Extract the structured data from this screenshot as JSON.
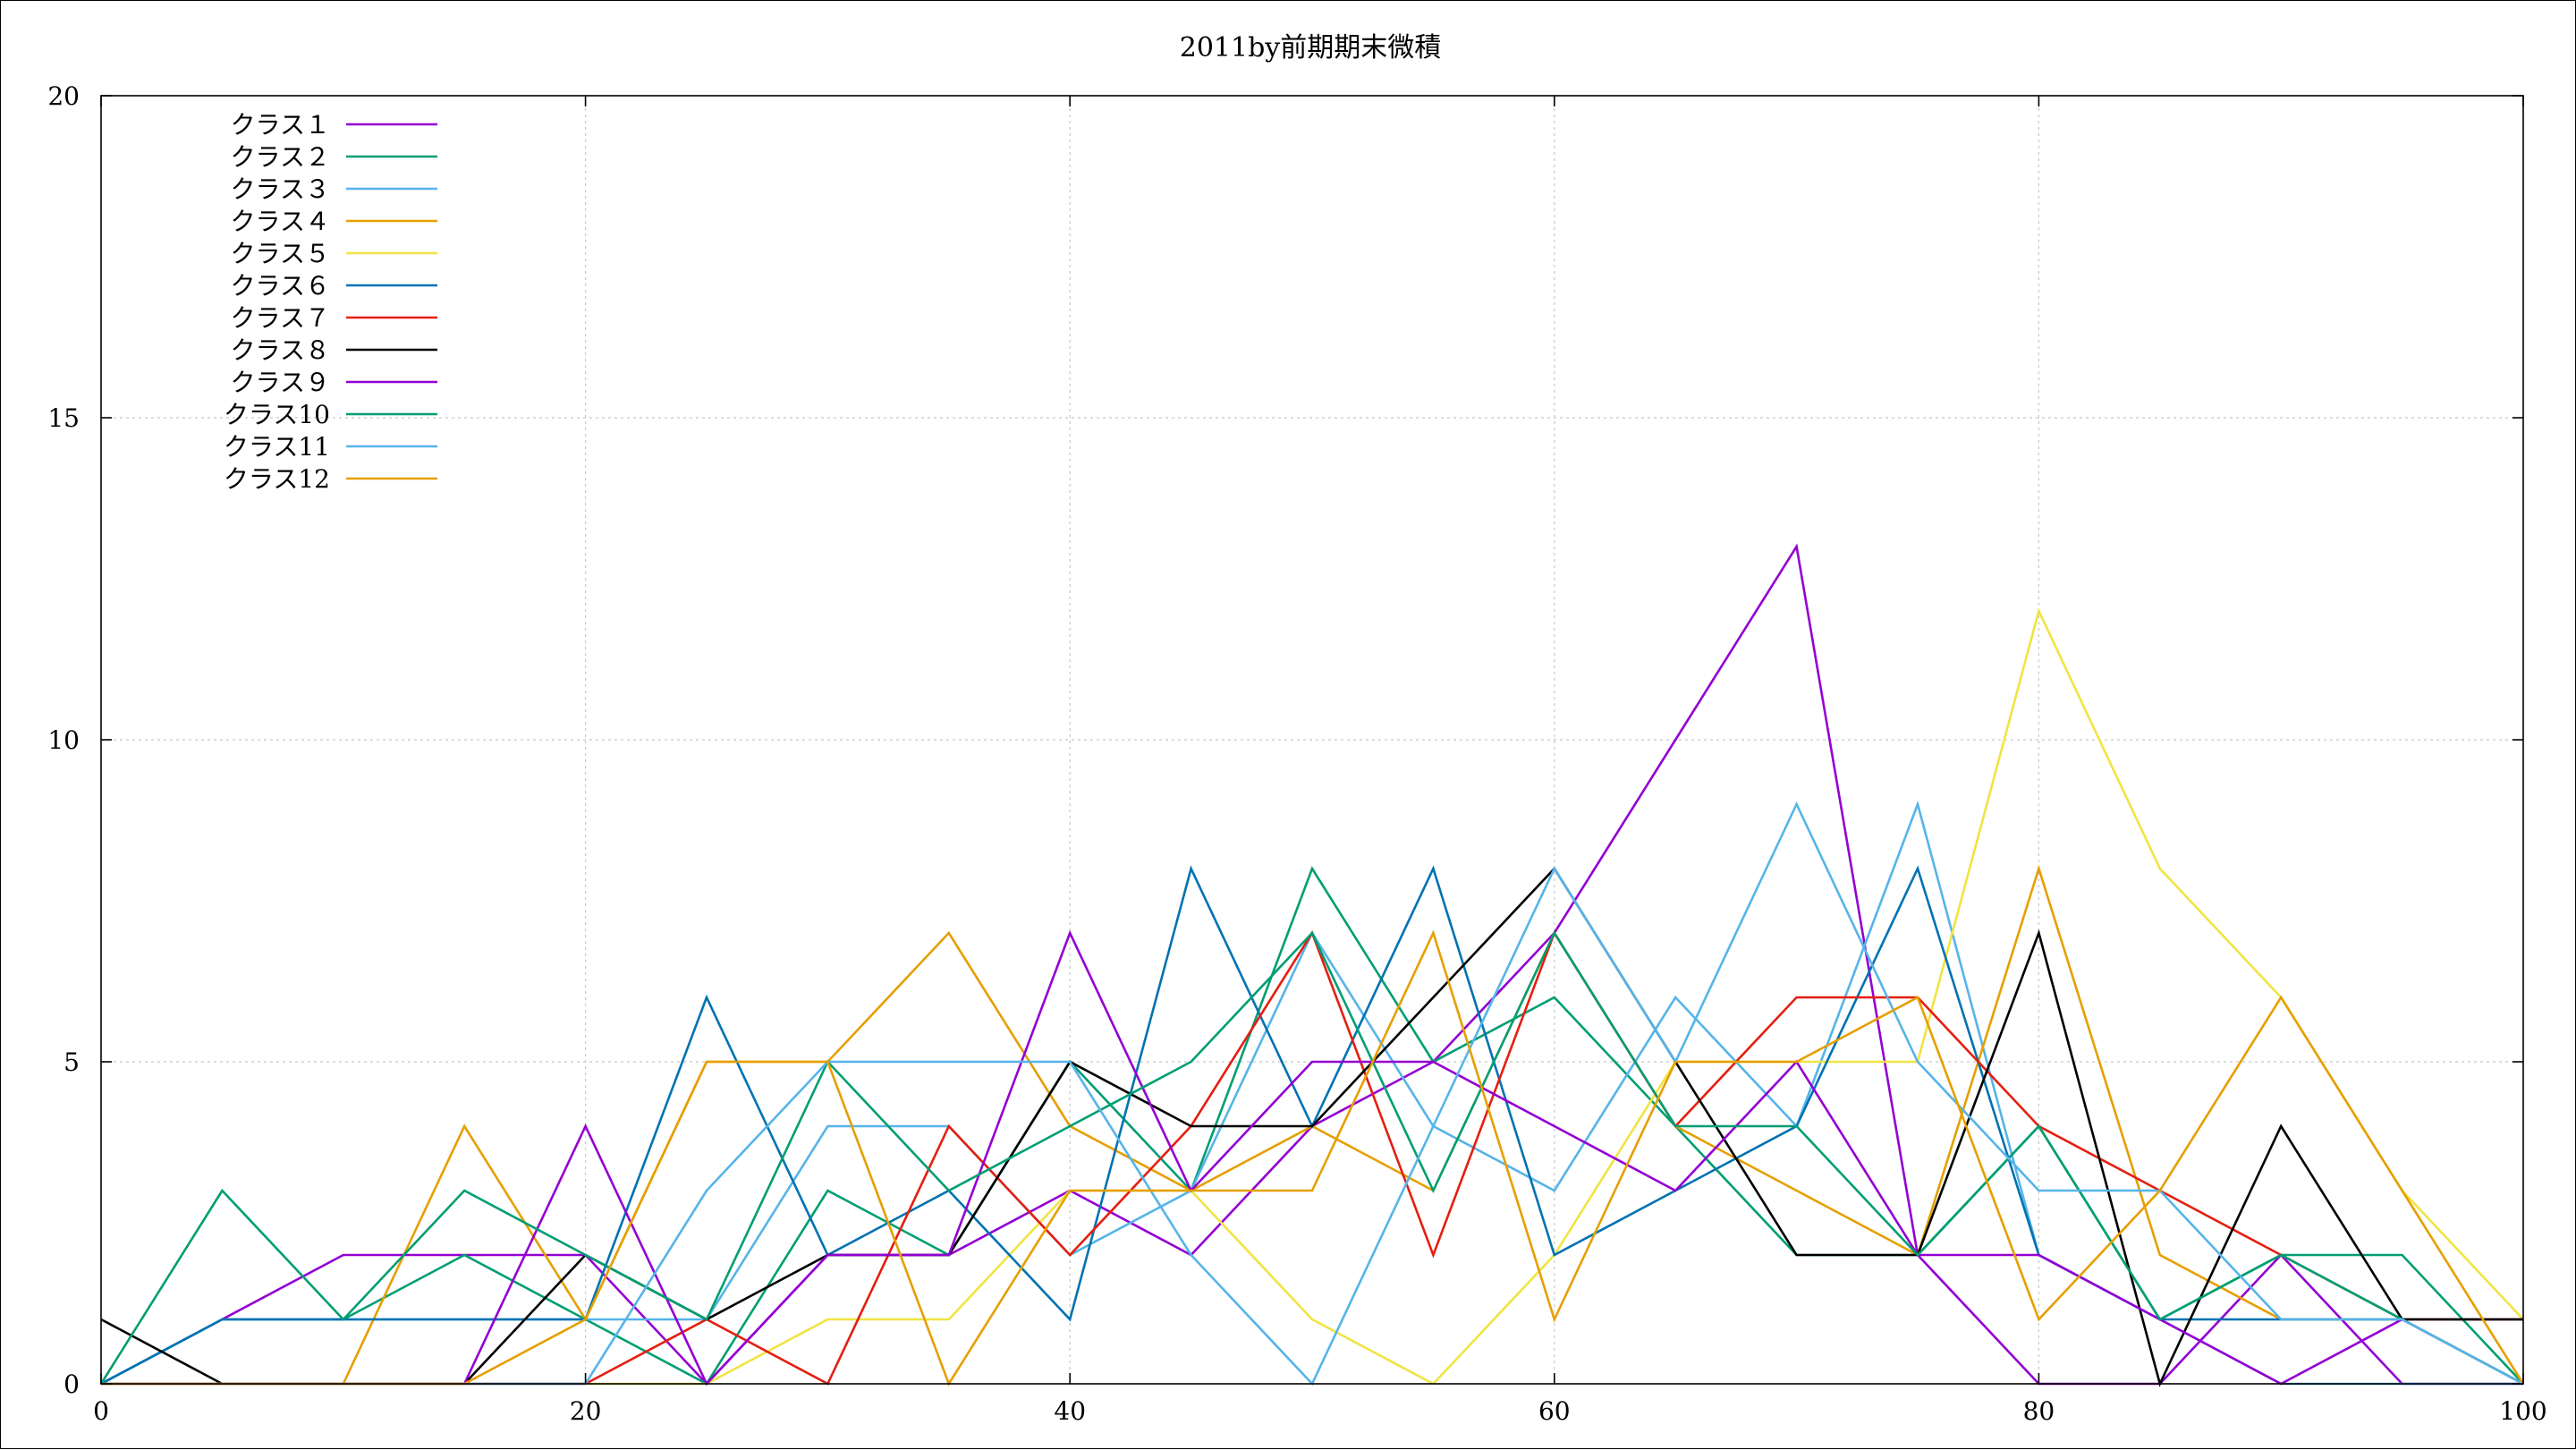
{
  "chart_data": {
    "type": "line",
    "title": "2011by前期期末微積",
    "xlabel": "",
    "ylabel": "",
    "xlim": [
      0,
      100
    ],
    "ylim": [
      0,
      20
    ],
    "x_ticks": [
      "0",
      "20",
      "40",
      "60",
      "80",
      "100"
    ],
    "y_ticks": [
      "0",
      "5",
      "10",
      "15",
      "20"
    ],
    "grid": true,
    "legend_position": "top-left",
    "x": [
      0,
      5,
      10,
      15,
      20,
      25,
      30,
      35,
      40,
      45,
      50,
      55,
      60,
      65,
      70,
      75,
      80,
      85,
      90,
      95,
      100
    ],
    "series": [
      {
        "name": "クラス１",
        "color": "#9400d3",
        "values": [
          0,
          1,
          2,
          2,
          2,
          0,
          2,
          2,
          3,
          2,
          4,
          5,
          7,
          10,
          13,
          2,
          0,
          0,
          2,
          0,
          0
        ]
      },
      {
        "name": "クラス２",
        "color": "#009e73",
        "values": [
          0,
          1,
          1,
          2,
          1,
          0,
          3,
          2,
          5,
          3,
          8,
          5,
          6,
          4,
          2,
          2,
          4,
          1,
          2,
          2,
          0
        ]
      },
      {
        "name": "クラス３",
        "color": "#56b4e9",
        "values": [
          0,
          1,
          1,
          1,
          1,
          1,
          4,
          4,
          2,
          3,
          7,
          4,
          3,
          6,
          4,
          9,
          2,
          1,
          0,
          0,
          0
        ]
      },
      {
        "name": "クラス４",
        "color": "#e69f00",
        "values": [
          0,
          0,
          0,
          4,
          1,
          5,
          5,
          7,
          4,
          3,
          4,
          3,
          7,
          4,
          3,
          2,
          8,
          2,
          1,
          1,
          0
        ]
      },
      {
        "name": "クラス５",
        "color": "#f0e442",
        "values": [
          0,
          0,
          0,
          0,
          0,
          0,
          1,
          1,
          3,
          3,
          1,
          0,
          2,
          5,
          5,
          5,
          12,
          8,
          6,
          3,
          1
        ]
      },
      {
        "name": "クラス６",
        "color": "#0072b2",
        "values": [
          0,
          1,
          1,
          1,
          1,
          6,
          2,
          3,
          1,
          8,
          4,
          8,
          2,
          3,
          4,
          8,
          2,
          1,
          1,
          1,
          1
        ]
      },
      {
        "name": "クラス７",
        "color": "#e51e10",
        "values": [
          0,
          0,
          0,
          0,
          0,
          1,
          0,
          4,
          2,
          4,
          7,
          2,
          7,
          4,
          6,
          6,
          4,
          3,
          2,
          1,
          1
        ]
      },
      {
        "name": "クラス８",
        "color": "#000000",
        "values": [
          1,
          0,
          0,
          0,
          2,
          1,
          2,
          2,
          5,
          4,
          4,
          6,
          8,
          5,
          2,
          2,
          7,
          0,
          4,
          1,
          1
        ]
      },
      {
        "name": "クラス９",
        "color": "#9400d3",
        "values": [
          0,
          0,
          0,
          0,
          4,
          0,
          2,
          2,
          7,
          3,
          5,
          5,
          4,
          3,
          5,
          2,
          2,
          1,
          0,
          1,
          0
        ]
      },
      {
        "name": "クラス10",
        "color": "#009e73",
        "values": [
          0,
          3,
          1,
          3,
          2,
          1,
          5,
          3,
          4,
          5,
          7,
          3,
          7,
          4,
          4,
          2,
          4,
          1,
          2,
          1,
          0
        ]
      },
      {
        "name": "クラス11",
        "color": "#56b4e9",
        "values": [
          0,
          0,
          0,
          0,
          0,
          3,
          5,
          5,
          5,
          2,
          0,
          4,
          8,
          5,
          9,
          5,
          3,
          3,
          1,
          1,
          0
        ]
      },
      {
        "name": "クラス12",
        "color": "#e69f00",
        "values": [
          0,
          0,
          0,
          0,
          1,
          5,
          5,
          0,
          3,
          3,
          3,
          7,
          1,
          5,
          5,
          6,
          1,
          3,
          6,
          3,
          0
        ]
      }
    ]
  }
}
